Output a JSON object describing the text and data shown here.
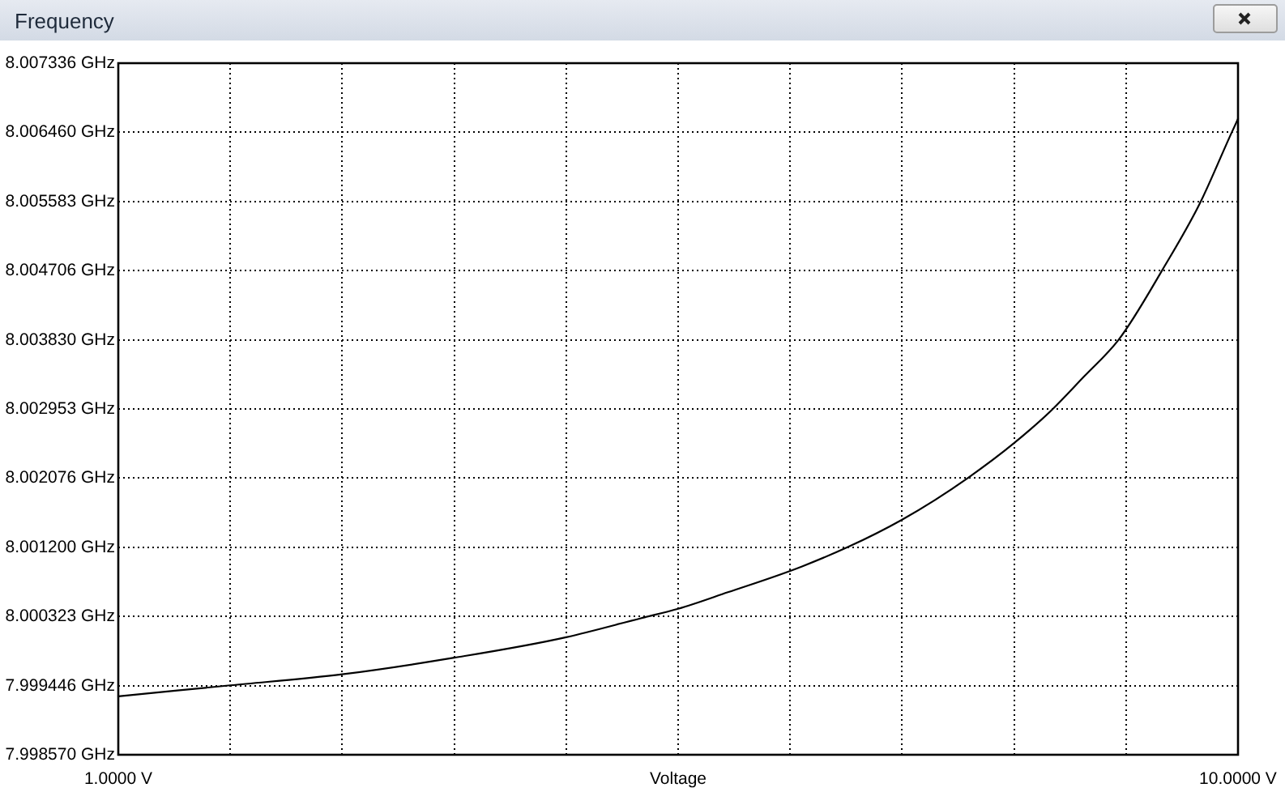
{
  "chart_data": {
    "type": "line",
    "title": "Frequency",
    "xlabel": "Voltage",
    "x": [
      1.0,
      1.9,
      2.8,
      3.7,
      4.6,
      5.2,
      5.5,
      5.9,
      6.5,
      6.86,
      7.3,
      7.83,
      8.2,
      8.51,
      8.76,
      9.04,
      9.39,
      9.7,
      9.95,
      10.0
    ],
    "series": [
      {
        "color": "#000000",
        "values": [
          7.99931,
          7.99945,
          7.99959,
          7.9998,
          8.00006,
          8.0003,
          8.00042,
          8.00063,
          8.00096,
          8.0012,
          8.00155,
          8.00208,
          8.00252,
          8.00295,
          8.00336,
          8.00383,
          8.00471,
          8.00558,
          8.00646,
          8.00663
        ]
      }
    ],
    "xlim": [
      1,
      10
    ],
    "ylim": [
      7.99857,
      8.007336
    ],
    "xticks": [
      {
        "value": 1,
        "label": "1.0000 V"
      },
      {
        "value": 1.9,
        "label": null
      },
      {
        "value": 2.8,
        "label": null
      },
      {
        "value": 3.7,
        "label": null
      },
      {
        "value": 4.6,
        "label": null
      },
      {
        "value": 5.5,
        "label": null
      },
      {
        "value": 6.4,
        "label": null
      },
      {
        "value": 7.3,
        "label": null
      },
      {
        "value": 8.2,
        "label": null
      },
      {
        "value": 9.1,
        "label": null
      },
      {
        "value": 10,
        "label": "10.0000 V"
      }
    ],
    "yticks": [
      {
        "value": 7.99857,
        "label": "7.998570 GHz"
      },
      {
        "value": 7.999446,
        "label": "7.999446 GHz"
      },
      {
        "value": 8.000323,
        "label": "8.000323 GHz"
      },
      {
        "value": 8.0012,
        "label": "8.001200 GHz"
      },
      {
        "value": 8.002076,
        "label": "8.002076 GHz"
      },
      {
        "value": 8.002953,
        "label": "8.002953 GHz"
      },
      {
        "value": 8.00383,
        "label": "8.003830 GHz"
      },
      {
        "value": 8.004706,
        "label": "8.004706 GHz"
      },
      {
        "value": 8.005583,
        "label": "8.005583 GHz"
      },
      {
        "value": 8.00646,
        "label": "8.006460 GHz"
      },
      {
        "value": 8.007336,
        "label": "8.007336 GHz"
      }
    ],
    "grid": true,
    "marker": "none",
    "line_style": "solid"
  }
}
